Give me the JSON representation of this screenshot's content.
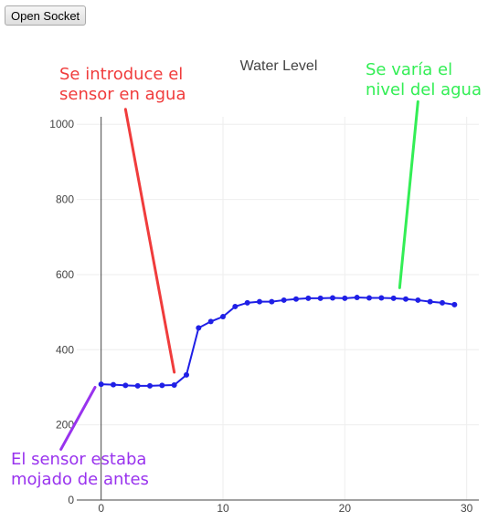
{
  "toolbar": {
    "open_socket_label": "Open Socket"
  },
  "chart_data": {
    "type": "line",
    "title": "Water Level",
    "xlabel": "",
    "ylabel": "",
    "xlim": [
      -2,
      31
    ],
    "ylim": [
      0,
      1020
    ],
    "x_ticks": [
      0,
      10,
      20,
      30
    ],
    "y_ticks": [
      0,
      200,
      400,
      600,
      800,
      1000
    ],
    "grid": true,
    "series_color": "#1f1fe6",
    "x": [
      0,
      1,
      2,
      3,
      4,
      5,
      6,
      7,
      8,
      9,
      10,
      11,
      12,
      13,
      14,
      15,
      16,
      17,
      18,
      19,
      20,
      21,
      22,
      23,
      24,
      25,
      26,
      27,
      28,
      29
    ],
    "values": [
      308,
      307,
      305,
      304,
      304,
      305,
      306,
      333,
      458,
      475,
      488,
      515,
      525,
      528,
      528,
      532,
      535,
      537,
      537,
      538,
      537,
      539,
      538,
      538,
      537,
      535,
      532,
      528,
      525,
      520
    ],
    "annotations": [
      {
        "lines": [
          "Se introduce el",
          "sensor en agua"
        ],
        "color": "#f03c3c",
        "arrow_from": [
          2,
          1040
        ],
        "arrow_to": [
          6,
          340
        ]
      },
      {
        "lines": [
          "Se varía el",
          "nivel del agua"
        ],
        "color": "#33ee55",
        "arrow_from": [
          26,
          1060
        ],
        "arrow_to": [
          24.5,
          565
        ]
      },
      {
        "lines": [
          "El sensor estaba",
          "mojado de antes"
        ],
        "color": "#9933ee",
        "arrow_from": [
          -0.5,
          300
        ],
        "arrow_to": [
          -3.3,
          135
        ]
      }
    ]
  }
}
